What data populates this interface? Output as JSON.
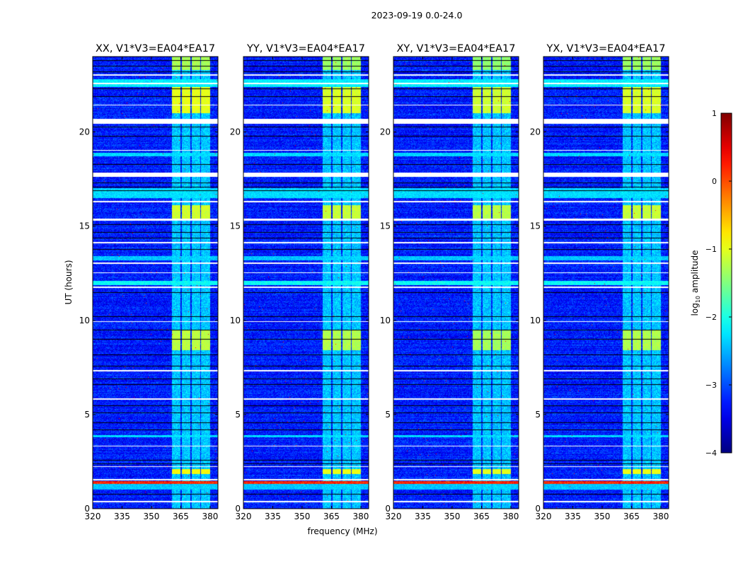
{
  "chart_data": {
    "type": "heatmap",
    "title": "2023-09-19 0.0-24.0",
    "xlabel": "frequency (MHz)",
    "ylabel": "UT (hours)",
    "xlim": [
      320,
      384
    ],
    "ylim": [
      0,
      24
    ],
    "xticks": [
      320,
      335,
      350,
      365,
      380
    ],
    "yticks": [
      0,
      5,
      10,
      15,
      20
    ],
    "panels": [
      {
        "title": "XX, V1*V3=EA04*EA17",
        "rfi_scale": 1.0
      },
      {
        "title": "YY, V1*V3=EA04*EA17",
        "rfi_scale": 0.9
      },
      {
        "title": "XY, V1*V3=EA04*EA17",
        "rfi_scale": 0.8
      },
      {
        "title": "YX, V1*V3=EA04*EA17",
        "rfi_scale": 0.9
      }
    ],
    "rfi_channels_mhz": [
      [
        360.5,
        365
      ],
      [
        365.5,
        370
      ],
      [
        370.5,
        375
      ],
      [
        375.5,
        380
      ]
    ],
    "bright_ut_ranges": [
      [
        21.0,
        22.4,
        -1.0
      ],
      [
        15.4,
        16.1,
        -1.1
      ],
      [
        8.4,
        9.5,
        -1.2
      ],
      [
        1.85,
        2.1,
        -0.9
      ],
      [
        23.3,
        24.0,
        -1.3
      ]
    ],
    "elevated_ut_ranges": [
      [
        22.4,
        22.8,
        -2.2
      ],
      [
        18.7,
        18.9,
        -2.3
      ],
      [
        16.5,
        17.0,
        -2.3
      ],
      [
        11.85,
        12.1,
        -2.1
      ],
      [
        1.0,
        1.3,
        -2.4
      ],
      [
        3.8,
        3.9,
        -2.3
      ],
      [
        13.2,
        13.4,
        -2.4
      ]
    ],
    "hot_ut_ranges": [
      [
        1.32,
        1.45,
        0.2
      ]
    ],
    "flagged_ut_ranges": [
      [
        20.45,
        20.7
      ],
      [
        17.6,
        17.85
      ],
      [
        15.3,
        15.4
      ],
      [
        11.7,
        11.8
      ],
      [
        16.25,
        16.35
      ],
      [
        0.35,
        0.42
      ],
      [
        1.5,
        1.56
      ],
      [
        13.0,
        13.06
      ],
      [
        12.5,
        12.55
      ],
      [
        22.55,
        22.6
      ],
      [
        23.0,
        23.06
      ],
      [
        19.0,
        19.05
      ],
      [
        7.3,
        7.35
      ],
      [
        5.8,
        5.85
      ],
      [
        3.3,
        3.36
      ],
      [
        2.2,
        2.27
      ],
      [
        9.9,
        9.96
      ],
      [
        14.1,
        14.15
      ],
      [
        21.4,
        21.45
      ]
    ],
    "dark_ut_lines": [
      23.8,
      23.5,
      23.2,
      22.3,
      21.9,
      20.3,
      19.8,
      18.3,
      17.3,
      17.1,
      16.9,
      15.1,
      14.7,
      14.4,
      13.8,
      11.5,
      10.2,
      9.5,
      9.0,
      8.2,
      7.6,
      6.9,
      6.6,
      5.5,
      5.1,
      4.6,
      4.2,
      2.6,
      2.4,
      0.8
    ],
    "colorbar": {
      "label": "log10 amplitude",
      "label_main": "log",
      "label_sub": "10",
      "label_rest": " amplitude",
      "range": [
        -4,
        1
      ],
      "ticks": [
        "−4",
        "−3",
        "−2",
        "−1",
        "0",
        "1"
      ],
      "tick_values": [
        -4,
        -3,
        -2,
        -1,
        0,
        1
      ],
      "colormap": "jet"
    }
  }
}
